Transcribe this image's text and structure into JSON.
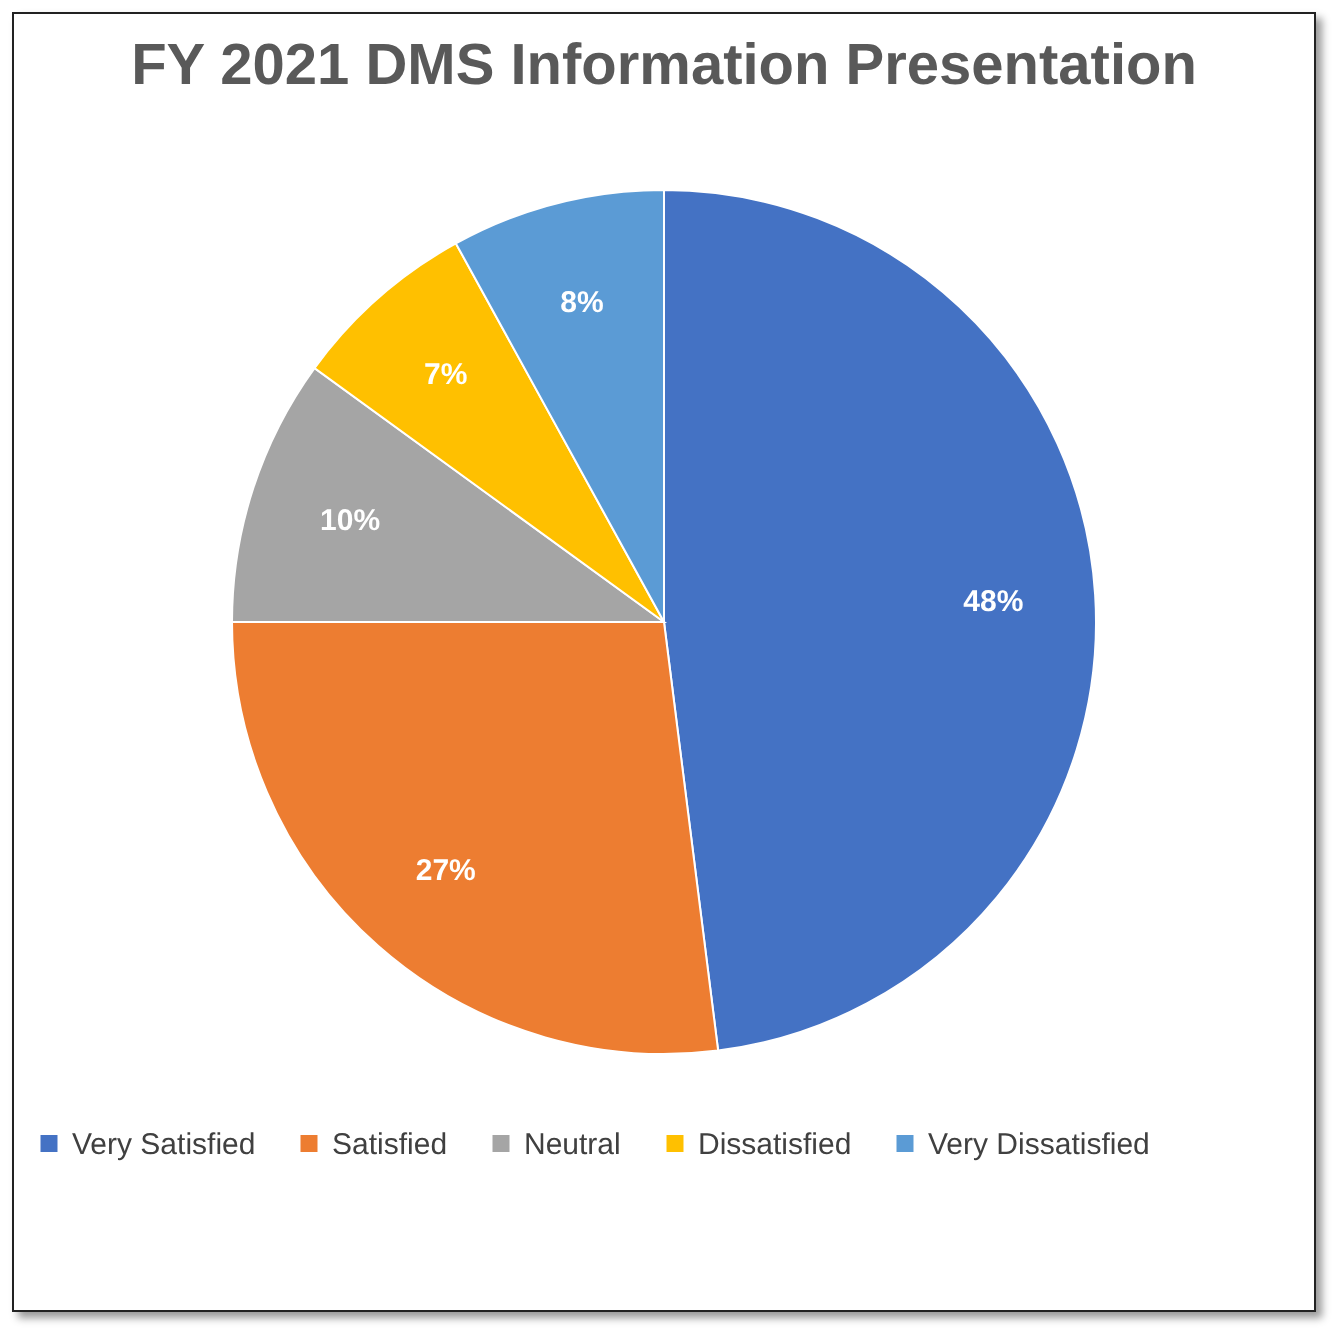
{
  "chart_data": {
    "type": "pie",
    "title": "FY 2021 DMS Information Presentation",
    "categories": [
      "Very Satisfied",
      "Satisfied",
      "Neutral",
      "Dissatisfied",
      "Very Dissatisfied"
    ],
    "values": [
      48,
      27,
      10,
      7,
      8
    ],
    "value_labels": [
      "48%",
      "27%",
      "10%",
      "7%",
      "8%"
    ],
    "colors": [
      "#4472c4",
      "#ed7d31",
      "#a5a5a5",
      "#ffc000",
      "#5b9bd5"
    ],
    "legend": "bottom"
  }
}
